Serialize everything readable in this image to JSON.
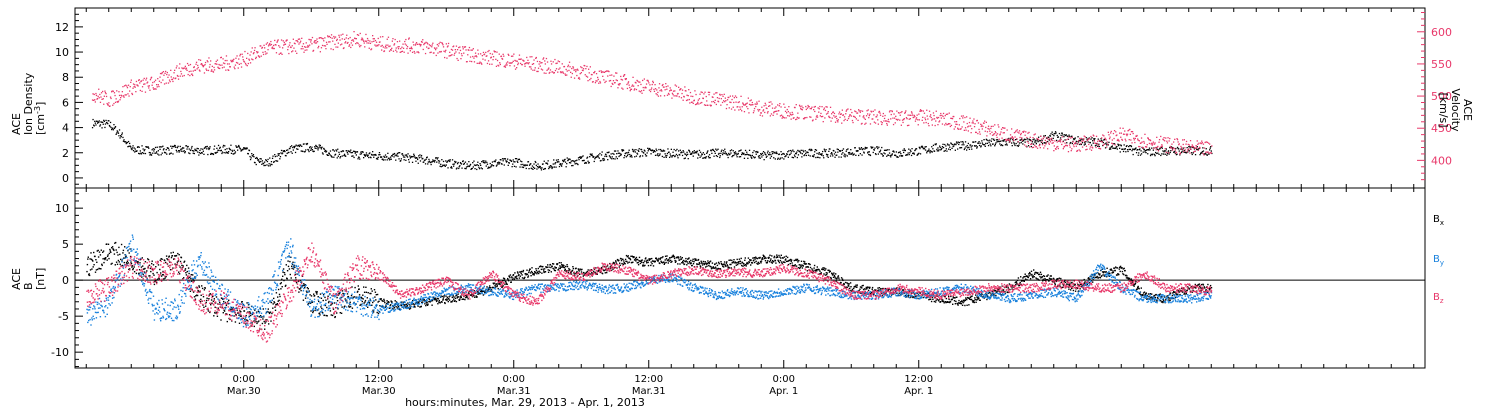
{
  "chart_data": [
    {
      "type": "scatter",
      "panel": "top",
      "ylabel_left": [
        "ACE",
        "Ion Density",
        "[cm",
        "-3",
        "]"
      ],
      "ylabel_right": [
        "ACE",
        "Velocity",
        "[km/s]"
      ],
      "ylim_left": [
        -0.8,
        13.5
      ],
      "yticks_left": [
        0,
        2,
        4,
        6,
        8,
        10,
        12
      ],
      "ylim_right": [
        357,
        637
      ],
      "yticks_right": [
        400,
        450,
        500,
        550,
        600
      ],
      "colors": {
        "density": "#000000",
        "velocity": "#e8386a"
      },
      "series": [
        {
          "key": "density",
          "axis": "left",
          "points": [
            [
              -13.5,
              4.4
            ],
            [
              -12,
              4.3
            ],
            [
              -11,
              3.5
            ],
            [
              -10,
              2.3
            ],
            [
              -8,
              2.2
            ],
            [
              -6,
              2.3
            ],
            [
              -4,
              2.2
            ],
            [
              -2,
              2.3
            ],
            [
              0,
              2.3
            ],
            [
              1,
              1.4
            ],
            [
              2,
              1.2
            ],
            [
              4,
              2.3
            ],
            [
              6,
              2.5
            ],
            [
              8,
              2.0
            ],
            [
              10,
              1.9
            ],
            [
              12,
              1.8
            ],
            [
              14,
              1.7
            ],
            [
              16,
              1.5
            ],
            [
              18,
              1.2
            ],
            [
              20,
              1.0
            ],
            [
              22,
              1.2
            ],
            [
              24,
              1.3
            ],
            [
              26,
              1.0
            ],
            [
              28,
              1.2
            ],
            [
              30,
              1.5
            ],
            [
              32,
              1.8
            ],
            [
              34,
              2.0
            ],
            [
              36,
              2.1
            ],
            [
              38,
              2.0
            ],
            [
              40,
              1.9
            ],
            [
              42,
              2.0
            ],
            [
              44,
              2.0
            ],
            [
              46,
              1.8
            ],
            [
              48,
              1.9
            ],
            [
              50,
              2.0
            ],
            [
              52,
              2.0
            ],
            [
              54,
              2.1
            ],
            [
              56,
              2.2
            ],
            [
              58,
              2.0
            ],
            [
              60,
              2.2
            ],
            [
              62,
              2.5
            ],
            [
              64,
              2.6
            ],
            [
              66,
              2.8
            ],
            [
              68,
              2.9
            ],
            [
              70,
              2.8
            ],
            [
              72,
              3.4
            ],
            [
              74,
              3.0
            ],
            [
              76,
              2.9
            ],
            [
              78,
              2.4
            ],
            [
              80,
              2.1
            ],
            [
              82,
              2.2
            ],
            [
              84,
              2.2
            ],
            [
              86,
              2.2
            ]
          ]
        },
        {
          "key": "velocity",
          "axis": "right",
          "points": [
            [
              -13.5,
              505
            ],
            [
              -12,
              495
            ],
            [
              -10,
              515
            ],
            [
              -8,
              520
            ],
            [
              -6,
              538
            ],
            [
              -4,
              548
            ],
            [
              -2,
              550
            ],
            [
              0,
              558
            ],
            [
              2,
              575
            ],
            [
              4,
              578
            ],
            [
              6,
              580
            ],
            [
              8,
              585
            ],
            [
              10,
              590
            ],
            [
              12,
              582
            ],
            [
              14,
              580
            ],
            [
              16,
              578
            ],
            [
              18,
              572
            ],
            [
              20,
              565
            ],
            [
              22,
              560
            ],
            [
              24,
              555
            ],
            [
              26,
              550
            ],
            [
              28,
              545
            ],
            [
              30,
              538
            ],
            [
              32,
              530
            ],
            [
              34,
              522
            ],
            [
              36,
              515
            ],
            [
              38,
              508
            ],
            [
              40,
              500
            ],
            [
              42,
              495
            ],
            [
              44,
              490
            ],
            [
              46,
              482
            ],
            [
              48,
              478
            ],
            [
              50,
              475
            ],
            [
              52,
              472
            ],
            [
              54,
              470
            ],
            [
              56,
              468
            ],
            [
              58,
              466
            ],
            [
              60,
              468
            ],
            [
              62,
              465
            ],
            [
              64,
              458
            ],
            [
              66,
              450
            ],
            [
              68,
              440
            ],
            [
              70,
              432
            ],
            [
              72,
              428
            ],
            [
              74,
              425
            ],
            [
              76,
              430
            ],
            [
              78,
              440
            ],
            [
              80,
              432
            ],
            [
              82,
              425
            ],
            [
              84,
              420
            ],
            [
              86,
              418
            ]
          ]
        }
      ]
    },
    {
      "type": "scatter",
      "panel": "bottom",
      "ylabel": [
        "ACE",
        "B",
        "[nT]"
      ],
      "ylim": [
        -12.2,
        12.8
      ],
      "yticks": [
        -10,
        -5,
        0,
        5,
        10
      ],
      "zero_line": true,
      "legend": [
        {
          "label": "B",
          "sub": "x",
          "color": "#000000"
        },
        {
          "label": "B",
          "sub": "y",
          "color": "#1a82dd"
        },
        {
          "label": "B",
          "sub": "z",
          "color": "#e8386a"
        }
      ],
      "series": [
        {
          "key": "bx",
          "points": [
            [
              -14,
              2
            ],
            [
              -12,
              4
            ],
            [
              -10,
              3
            ],
            [
              -8,
              1
            ],
            [
              -6,
              3
            ],
            [
              -4,
              -2
            ],
            [
              -2,
              -4
            ],
            [
              0,
              -4.5
            ],
            [
              2,
              -5.5
            ],
            [
              4,
              2
            ],
            [
              6,
              -3
            ],
            [
              8,
              -3.5
            ],
            [
              10,
              -2
            ],
            [
              12,
              -3
            ],
            [
              14,
              -3.5
            ],
            [
              16,
              -3
            ],
            [
              18,
              -2.5
            ],
            [
              20,
              -2
            ],
            [
              22,
              -1
            ],
            [
              24,
              0.5
            ],
            [
              26,
              1.5
            ],
            [
              28,
              2
            ],
            [
              30,
              1
            ],
            [
              32,
              1.5
            ],
            [
              34,
              3
            ],
            [
              36,
              2.5
            ],
            [
              38,
              3
            ],
            [
              40,
              2.5
            ],
            [
              42,
              2
            ],
            [
              44,
              2.5
            ],
            [
              46,
              3
            ],
            [
              48,
              3
            ],
            [
              50,
              2
            ],
            [
              52,
              1
            ],
            [
              54,
              -1
            ],
            [
              56,
              -1.5
            ],
            [
              58,
              -1.5
            ],
            [
              60,
              -2
            ],
            [
              62,
              -2.5
            ],
            [
              64,
              -3
            ],
            [
              66,
              -2
            ],
            [
              68,
              -1
            ],
            [
              70,
              1
            ],
            [
              72,
              0
            ],
            [
              74,
              -1
            ],
            [
              76,
              1
            ],
            [
              78,
              1.5
            ],
            [
              80,
              -2
            ],
            [
              82,
              -2.5
            ],
            [
              84,
              -1
            ],
            [
              86,
              -1
            ]
          ]
        },
        {
          "key": "by",
          "points": [
            [
              -14,
              -5
            ],
            [
              -12,
              -3
            ],
            [
              -10,
              5
            ],
            [
              -8,
              -4
            ],
            [
              -6,
              -4
            ],
            [
              -4,
              3
            ],
            [
              -2,
              -2
            ],
            [
              0,
              -5
            ],
            [
              2,
              -3
            ],
            [
              4,
              5
            ],
            [
              6,
              -4
            ],
            [
              8,
              -2
            ],
            [
              10,
              -3
            ],
            [
              12,
              -4
            ],
            [
              14,
              -3.5
            ],
            [
              16,
              -2.5
            ],
            [
              18,
              -1.5
            ],
            [
              20,
              -1
            ],
            [
              22,
              -1.5
            ],
            [
              24,
              -2
            ],
            [
              26,
              -1
            ],
            [
              28,
              -1
            ],
            [
              30,
              -0.5
            ],
            [
              32,
              -1.2
            ],
            [
              34,
              -1
            ],
            [
              36,
              0
            ],
            [
              38,
              0.5
            ],
            [
              40,
              -1
            ],
            [
              42,
              -2
            ],
            [
              44,
              -1.5
            ],
            [
              46,
              -2
            ],
            [
              48,
              -1.5
            ],
            [
              50,
              -1
            ],
            [
              52,
              -1.5
            ],
            [
              54,
              -2
            ],
            [
              56,
              -2
            ],
            [
              58,
              -1.5
            ],
            [
              60,
              -2
            ],
            [
              62,
              -1.5
            ],
            [
              64,
              -1
            ],
            [
              66,
              -2
            ],
            [
              68,
              -2.5
            ],
            [
              70,
              -2
            ],
            [
              72,
              -1.5
            ],
            [
              74,
              -2.5
            ],
            [
              76,
              2
            ],
            [
              78,
              -1
            ],
            [
              80,
              -2.5
            ],
            [
              82,
              -2.5
            ],
            [
              84,
              -2.5
            ],
            [
              86,
              -2
            ]
          ]
        },
        {
          "key": "bz",
          "points": [
            [
              -14,
              -2
            ],
            [
              -12,
              -1
            ],
            [
              -10,
              2
            ],
            [
              -8,
              1
            ],
            [
              -6,
              2
            ],
            [
              -4,
              -3
            ],
            [
              -2,
              -3
            ],
            [
              0,
              -5
            ],
            [
              2,
              -7
            ],
            [
              4,
              -2
            ],
            [
              6,
              4
            ],
            [
              8,
              -3
            ],
            [
              10,
              2
            ],
            [
              12,
              1
            ],
            [
              14,
              -2
            ],
            [
              16,
              -1
            ],
            [
              18,
              0
            ],
            [
              20,
              -2
            ],
            [
              22,
              1
            ],
            [
              24,
              -2
            ],
            [
              26,
              -3
            ],
            [
              28,
              1
            ],
            [
              30,
              0.5
            ],
            [
              32,
              2
            ],
            [
              34,
              1.5
            ],
            [
              36,
              0
            ],
            [
              38,
              1
            ],
            [
              40,
              1.5
            ],
            [
              42,
              1
            ],
            [
              44,
              1.2
            ],
            [
              46,
              1
            ],
            [
              48,
              1.8
            ],
            [
              50,
              1
            ],
            [
              52,
              0
            ],
            [
              54,
              -2
            ],
            [
              56,
              -2
            ],
            [
              58,
              -1
            ],
            [
              60,
              -1.5
            ],
            [
              62,
              -2
            ],
            [
              64,
              -1.5
            ],
            [
              66,
              -1
            ],
            [
              68,
              -1
            ],
            [
              70,
              -1
            ],
            [
              72,
              -0.5
            ],
            [
              74,
              -0.5
            ],
            [
              76,
              -1
            ],
            [
              78,
              -1
            ],
            [
              80,
              1
            ],
            [
              82,
              -1
            ],
            [
              84,
              -1
            ],
            [
              86,
              -1.5
            ]
          ]
        }
      ]
    }
  ],
  "x_axis": {
    "xlim": [
      -15,
      105
    ],
    "ticks": [
      {
        "x": 0,
        "time": "0:00",
        "date": "Mar.30"
      },
      {
        "x": 12,
        "time": "12:00",
        "date": "Mar.30"
      },
      {
        "x": 24,
        "time": "0:00",
        "date": "Mar.31"
      },
      {
        "x": 36,
        "time": "12:00",
        "date": "Mar.31"
      },
      {
        "x": 48,
        "time": "0:00",
        "date": "Apr. 1"
      },
      {
        "x": 60,
        "time": "12:00",
        "date": "Apr. 1"
      }
    ],
    "label": "hours:minutes, Mar. 29, 2013 - Apr.  1, 2013"
  }
}
